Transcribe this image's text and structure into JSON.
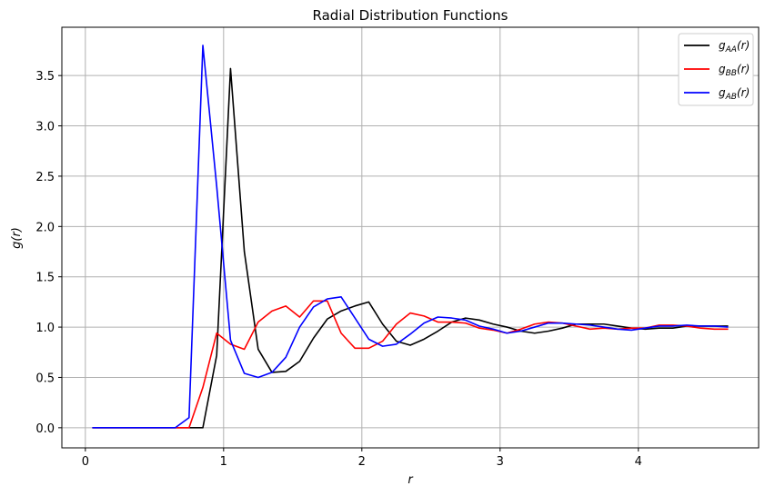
{
  "chart_data": {
    "type": "line",
    "title": "Radial Distribution Functions",
    "xlabel": "r",
    "ylabel": "g(r)",
    "xlim": [
      -0.17,
      4.87
    ],
    "ylim": [
      -0.2,
      3.98
    ],
    "xticks": [
      0,
      1,
      2,
      3,
      4
    ],
    "xtick_labels": [
      "0",
      "1",
      "2",
      "3",
      "4"
    ],
    "yticks": [
      0.0,
      0.5,
      1.0,
      1.5,
      2.0,
      2.5,
      3.0,
      3.5
    ],
    "ytick_labels": [
      "0.0",
      "0.5",
      "1.0",
      "1.5",
      "2.0",
      "2.5",
      "3.0",
      "3.5"
    ],
    "grid": true,
    "legend_position": "top-right",
    "x": [
      0.05,
      0.15,
      0.25,
      0.35,
      0.45,
      0.55,
      0.65,
      0.75,
      0.85,
      0.95,
      1.05,
      1.15,
      1.25,
      1.35,
      1.45,
      1.55,
      1.65,
      1.75,
      1.85,
      1.95,
      2.05,
      2.15,
      2.25,
      2.35,
      2.45,
      2.55,
      2.65,
      2.75,
      2.85,
      2.95,
      3.05,
      3.15,
      3.25,
      3.35,
      3.45,
      3.55,
      3.65,
      3.75,
      3.85,
      3.95,
      4.05,
      4.15,
      4.25,
      4.35,
      4.45,
      4.55,
      4.65
    ],
    "series": [
      {
        "name": "gAA(r)",
        "legend_main": "g",
        "legend_sub": "AA",
        "legend_tail": "(r)",
        "color": "#000000",
        "values": [
          0,
          0,
          0,
          0,
          0,
          0,
          0,
          0,
          0,
          0.72,
          3.57,
          1.75,
          0.78,
          0.55,
          0.56,
          0.66,
          0.89,
          1.08,
          1.16,
          1.21,
          1.25,
          1.03,
          0.86,
          0.82,
          0.88,
          0.96,
          1.05,
          1.09,
          1.07,
          1.03,
          1.0,
          0.96,
          0.94,
          0.96,
          0.99,
          1.03,
          1.03,
          1.03,
          1.01,
          0.99,
          0.98,
          0.99,
          0.99,
          1.01,
          1.01,
          1.01,
          1.01
        ]
      },
      {
        "name": "gBB(r)",
        "legend_main": "g",
        "legend_sub": "BB",
        "legend_tail": "(r)",
        "color": "#ff0000",
        "values": [
          0,
          0,
          0,
          0,
          0,
          0,
          0,
          0,
          0.4,
          0.94,
          0.83,
          0.78,
          1.05,
          1.16,
          1.21,
          1.1,
          1.26,
          1.26,
          0.94,
          0.79,
          0.79,
          0.86,
          1.03,
          1.14,
          1.11,
          1.05,
          1.05,
          1.04,
          0.99,
          0.97,
          0.94,
          0.98,
          1.03,
          1.05,
          1.04,
          1.01,
          0.98,
          0.99,
          0.98,
          0.99,
          0.99,
          1.02,
          1.02,
          1.01,
          0.99,
          0.98,
          0.98
        ]
      },
      {
        "name": "gAB(r)",
        "legend_main": "g",
        "legend_sub": "AB",
        "legend_tail": "(r)",
        "color": "#0000ff",
        "values": [
          0,
          0,
          0,
          0,
          0,
          0,
          0,
          0.1,
          3.8,
          2.4,
          0.87,
          0.54,
          0.5,
          0.55,
          0.7,
          1.0,
          1.2,
          1.28,
          1.3,
          1.09,
          0.88,
          0.81,
          0.83,
          0.93,
          1.04,
          1.1,
          1.09,
          1.07,
          1.01,
          0.98,
          0.94,
          0.96,
          1.0,
          1.04,
          1.04,
          1.03,
          1.02,
          1.0,
          0.98,
          0.97,
          0.99,
          1.01,
          1.01,
          1.02,
          1.01,
          1.01,
          1.0
        ]
      }
    ]
  }
}
